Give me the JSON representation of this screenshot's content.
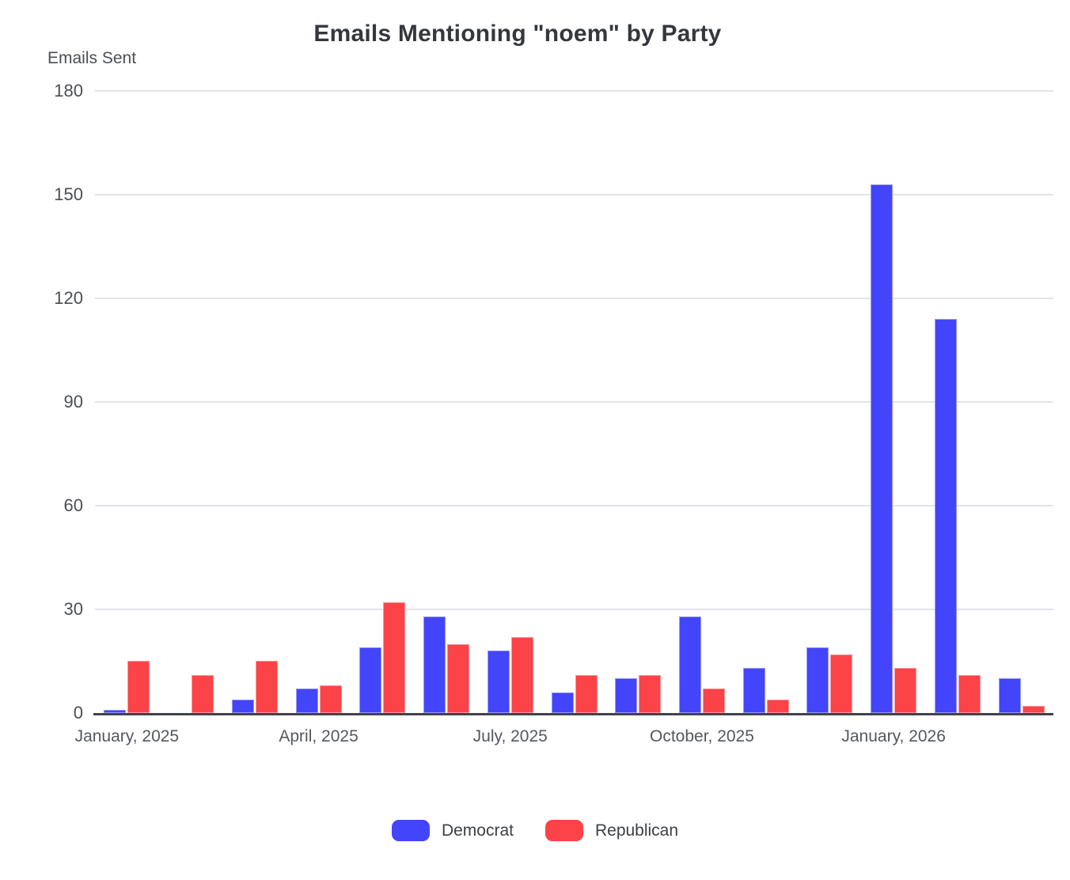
{
  "title": "Emails Mentioning \"noem\" by Party",
  "y_axis": {
    "label": "Emails Sent",
    "ticks": [
      0,
      30,
      60,
      90,
      120,
      150,
      180
    ]
  },
  "x_axis": {
    "tick_labels": [
      "January, 2025",
      "April, 2025",
      "July, 2025",
      "October, 2025",
      "January, 2026"
    ],
    "tick_group_indexes": [
      0,
      3,
      6,
      9,
      12
    ]
  },
  "legend": {
    "items": [
      {
        "label": "Democrat",
        "color": "#4345fa"
      },
      {
        "label": "Republican",
        "color": "#fc4347"
      }
    ]
  },
  "chart_data": {
    "type": "bar",
    "title": "Emails Mentioning \"noem\" by Party",
    "ylabel": "Emails Sent",
    "ylim": [
      0,
      180
    ],
    "grid": true,
    "legend_position": "bottom",
    "categories": [
      "January 2025",
      "February 2025",
      "March 2025",
      "April 2025",
      "May 2025",
      "June 2025",
      "July 2025",
      "August 2025",
      "September 2025",
      "October 2025",
      "November 2025",
      "December 2025",
      "January 2026",
      "February 2026",
      "March 2026"
    ],
    "series": [
      {
        "name": "Democrat",
        "color": "#4345fa",
        "values": [
          1,
          0,
          4,
          7,
          19,
          28,
          18,
          6,
          10,
          28,
          13,
          19,
          153,
          114,
          10
        ]
      },
      {
        "name": "Republican",
        "color": "#fc4347",
        "values": [
          15,
          11,
          15,
          8,
          32,
          20,
          22,
          11,
          11,
          7,
          4,
          17,
          13,
          11,
          2
        ]
      }
    ]
  }
}
